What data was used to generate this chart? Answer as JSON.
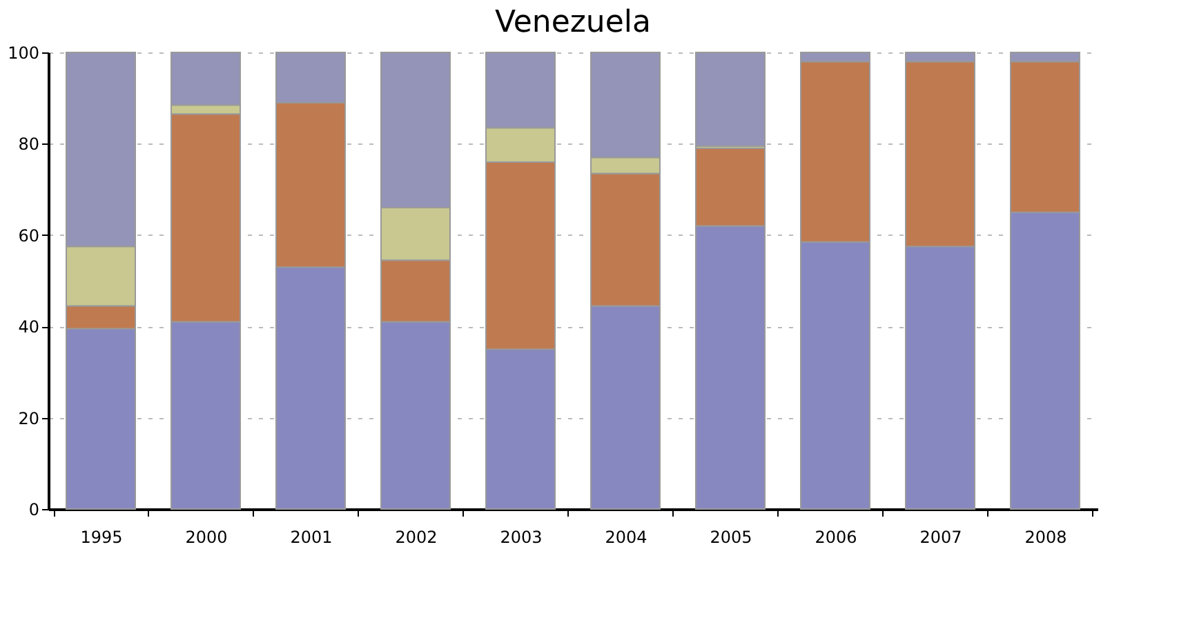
{
  "chart_data": {
    "type": "bar",
    "title": "Venezuela",
    "stacked": true,
    "categories": [
      "1995",
      "2000",
      "2001",
      "2002",
      "2003",
      "2004",
      "2005",
      "2006",
      "2007",
      "2008"
    ],
    "series": [
      {
        "color": "#8888c0",
        "values": [
          39.5,
          41,
          53,
          41,
          35,
          44.5,
          62,
          58.5,
          57.5,
          65
        ]
      },
      {
        "color": "#c07a50",
        "values": [
          5,
          45.5,
          36,
          13.5,
          41,
          29,
          17,
          39.5,
          40.5,
          33
        ]
      },
      {
        "color": "#c8c890",
        "values": [
          13,
          2,
          0,
          11.5,
          7.5,
          3.5,
          0.5,
          0,
          0,
          0
        ]
      },
      {
        "color": "#9494b8",
        "values": [
          42.5,
          11.5,
          11,
          34,
          16.5,
          23,
          20.5,
          2,
          2,
          2
        ]
      }
    ],
    "ylim": [
      0,
      100
    ],
    "yticks": [
      0,
      20,
      40,
      60,
      80,
      100
    ],
    "grid": "y"
  }
}
